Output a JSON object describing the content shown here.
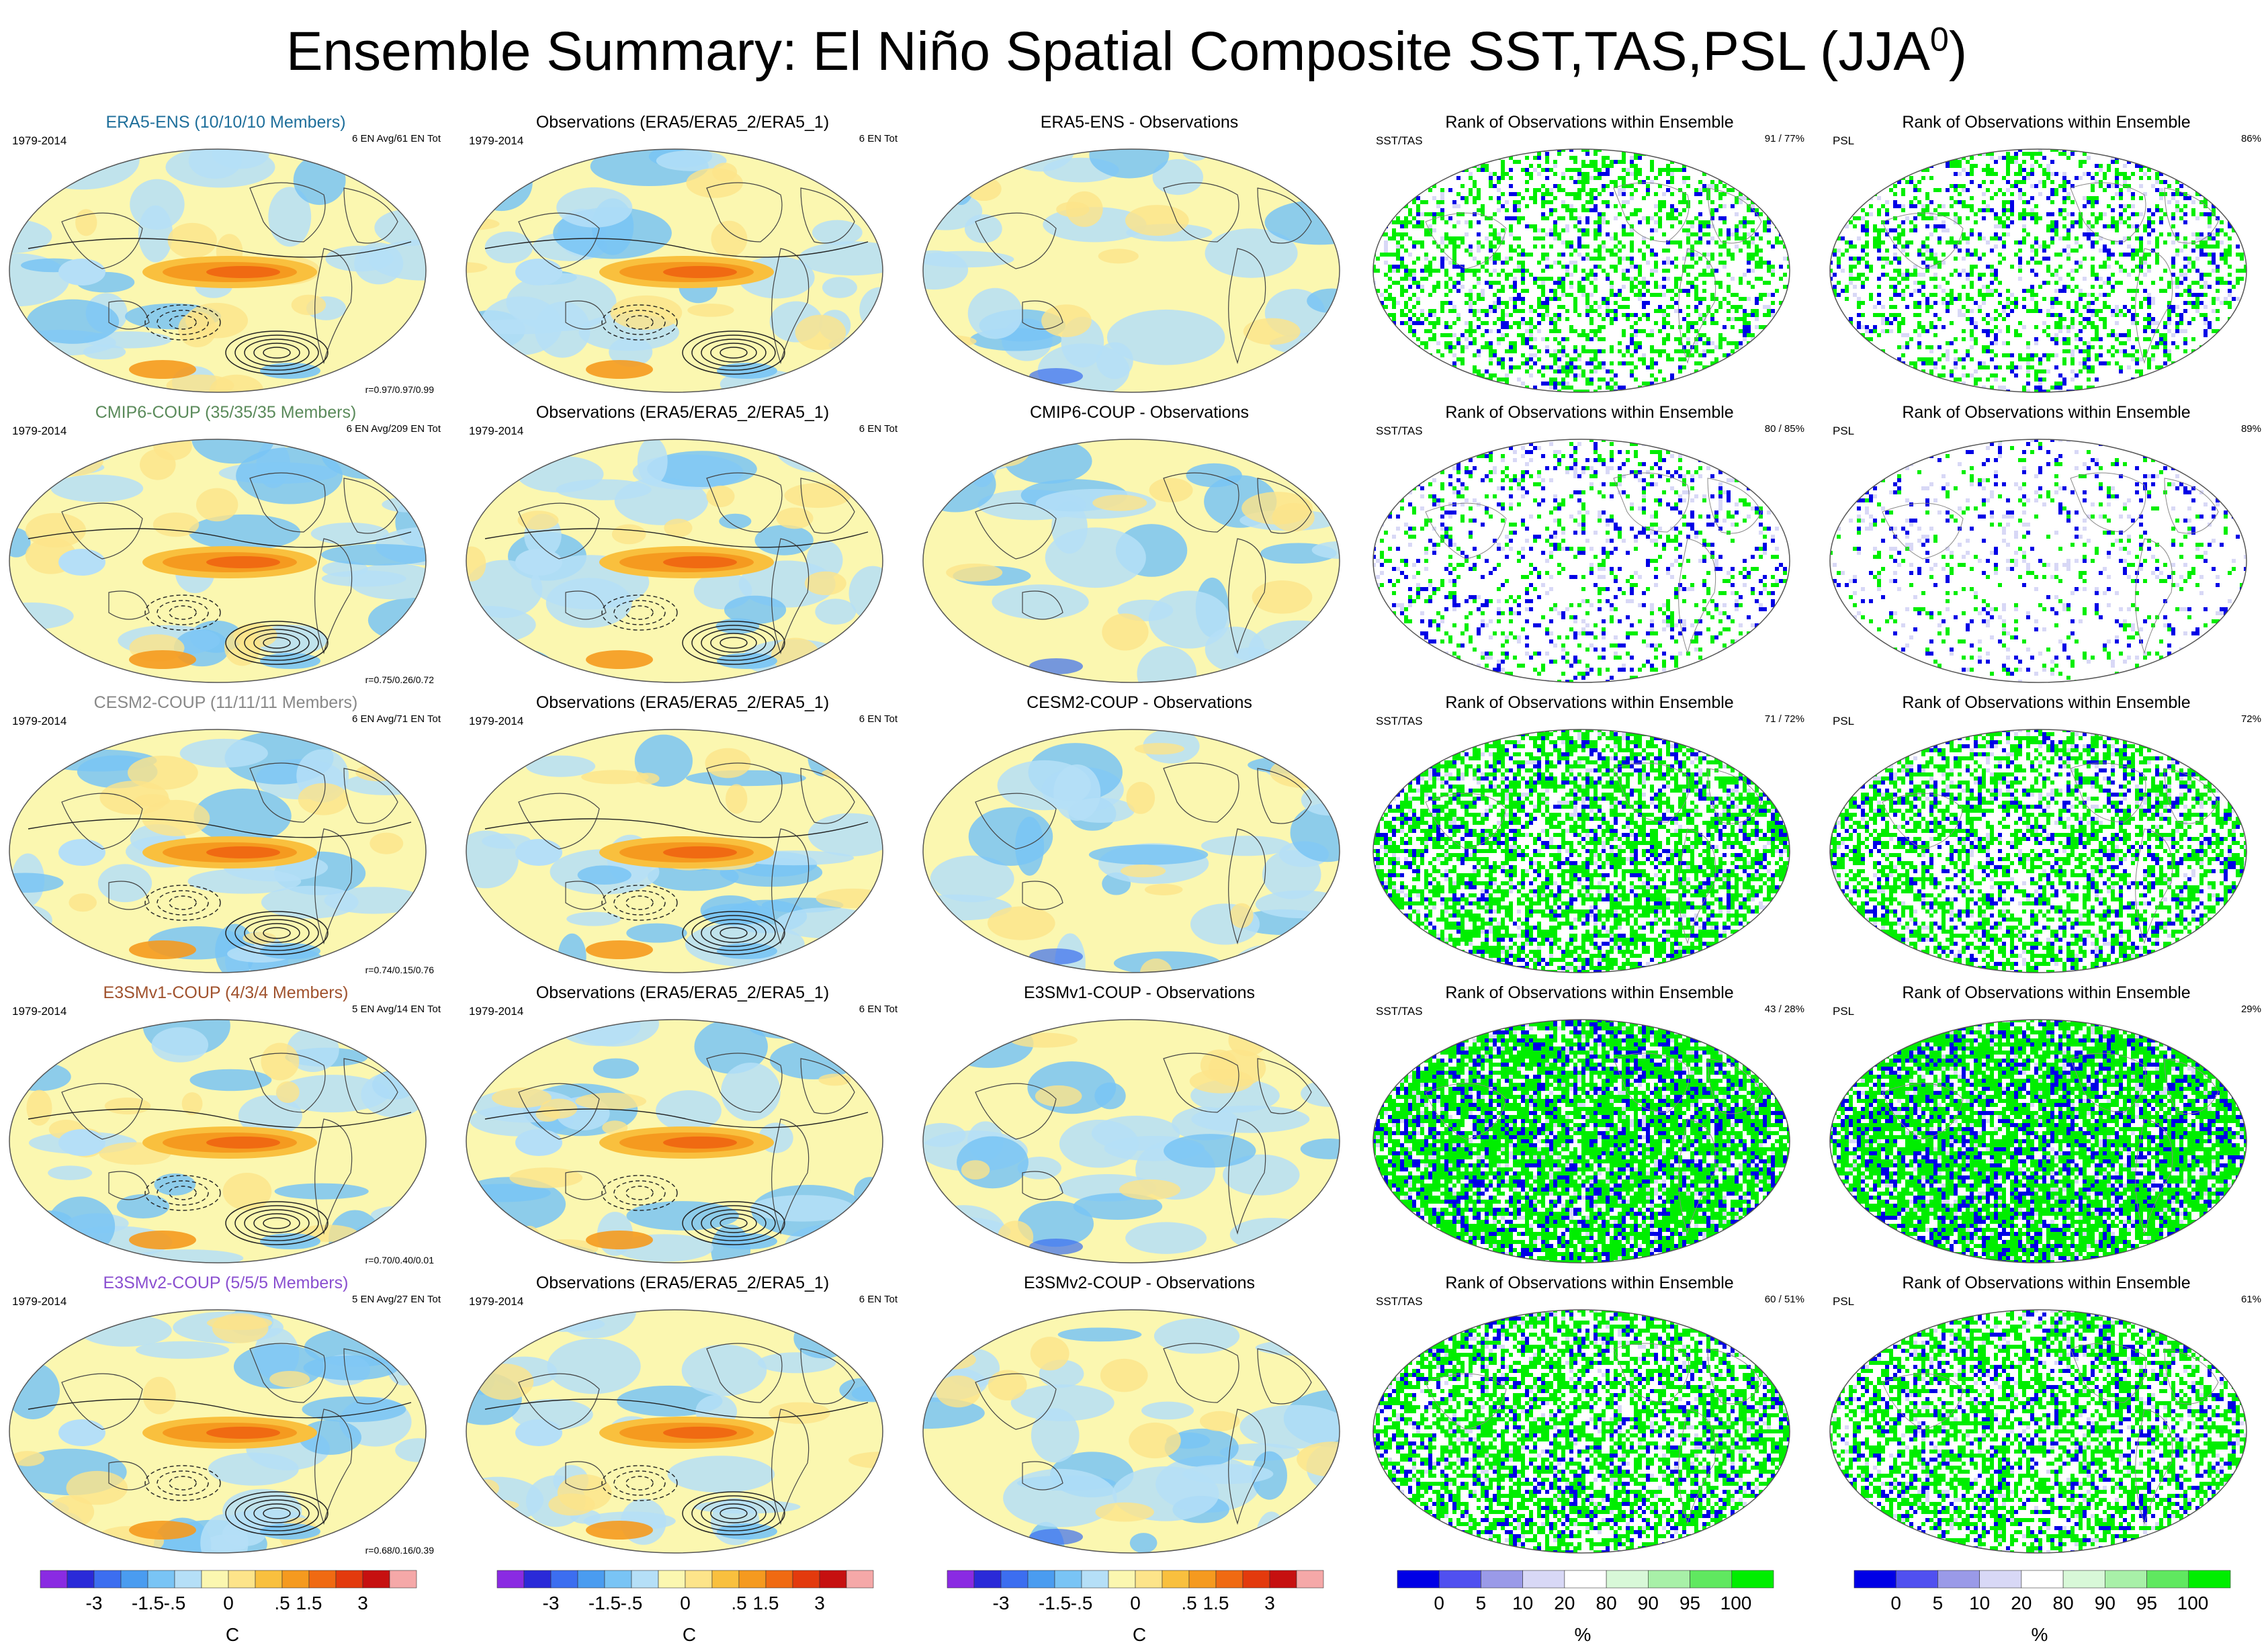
{
  "title": {
    "text": "Ensemble Summary: El Niño Spatial Composite SST,TAS,PSL (JJA",
    "superscript": "0",
    "close": ")"
  },
  "rows": [
    {
      "label": "ERA5-ENS (10/10/10 Members)",
      "label_color": "#1f6f9b",
      "ens_info": "6 EN Avg/61 EN Tot",
      "corr": "r=0.97/0.97/0.99",
      "diff_title": "ERA5-ENS - Observations",
      "rank_sst_pct": "91 /  77%",
      "rank_psl_pct": "86%",
      "green_frac_sst": 0.25,
      "blue_frac_sst": 0.06,
      "green_frac_psl": 0.2,
      "blue_frac_psl": 0.08
    },
    {
      "label": "CMIP6-COUP (35/35/35 Members)",
      "label_color": "#5a8a5a",
      "ens_info": "6 EN Avg/209 EN Tot",
      "corr": "r=0.75/0.26/0.72",
      "diff_title": "CMIP6-COUP - Observations",
      "rank_sst_pct": "80 /  85%",
      "rank_psl_pct": "89%",
      "green_frac_sst": 0.1,
      "blue_frac_sst": 0.08,
      "green_frac_psl": 0.06,
      "blue_frac_psl": 0.05
    },
    {
      "label": "CESM2-COUP (11/11/11 Members)",
      "label_color": "#888888",
      "ens_info": "6 EN Avg/71 EN Tot",
      "corr": "r=0.74/0.15/0.76",
      "diff_title": "CESM2-COUP - Observations",
      "rank_sst_pct": "71 /  72%",
      "rank_psl_pct": "72%",
      "green_frac_sst": 0.45,
      "blue_frac_sst": 0.12,
      "green_frac_psl": 0.35,
      "blue_frac_psl": 0.12
    },
    {
      "label": "E3SMv1-COUP (4/3/4 Members)",
      "label_color": "#a0522d",
      "ens_info": "5 EN Avg/14 EN Tot",
      "corr": "r=0.70/0.40/0.01",
      "diff_title": "E3SMv1-COUP - Observations",
      "rank_sst_pct": "43 /  28%",
      "rank_psl_pct": "29%",
      "green_frac_sst": 0.55,
      "blue_frac_sst": 0.2,
      "green_frac_psl": 0.55,
      "blue_frac_psl": 0.2
    },
    {
      "label": "E3SMv2-COUP (5/5/5 Members)",
      "label_color": "#8a4fd0",
      "ens_info": "5 EN Avg/27 EN Tot",
      "corr": "r=0.68/0.16/0.39",
      "diff_title": "E3SMv2-COUP - Observations",
      "rank_sst_pct": "60 /  51%",
      "rank_psl_pct": "61%",
      "green_frac_sst": 0.45,
      "blue_frac_sst": 0.12,
      "green_frac_psl": 0.4,
      "blue_frac_psl": 0.12
    }
  ],
  "common": {
    "period": "1979-2014",
    "obs_title": "Observations (ERA5/ERA5_2/ERA5_1)",
    "obs_info": "6 EN Tot",
    "rank_title": "Rank of Observations within Ensemble",
    "rank_sst_label": "SST/TAS",
    "rank_psl_label": "PSL"
  },
  "colorbar_temp": {
    "unit": "C",
    "tick_labels": [
      "-3",
      "-1.5",
      "-.5",
      "0",
      ".5",
      "1.5",
      "3"
    ],
    "colors": [
      "#8a2be2",
      "#2a2ad8",
      "#3c6ef0",
      "#4a9cf0",
      "#79c4f5",
      "#b5dff7",
      "#fbf7b0",
      "#fde48a",
      "#f9c03e",
      "#f59a1f",
      "#f06a12",
      "#e33a0d",
      "#c61010",
      "#f5a8a8"
    ]
  },
  "colorbar_rank": {
    "unit": "%",
    "tick_labels": [
      "0",
      "5",
      "10",
      "20",
      "80",
      "90",
      "95",
      "100"
    ],
    "colors": [
      "#0000e6",
      "#5050f0",
      "#9a9ae8",
      "#d8d8f6",
      "#ffffff",
      "#d8f8d8",
      "#a8f0a8",
      "#60e860",
      "#00ee00"
    ]
  },
  "chart_data": {
    "type": "heatmap",
    "description_fields": {
      "rows": [
        "ERA5-ENS",
        "CMIP6-COUP",
        "CESM2-COUP",
        "E3SMv1-COUP",
        "E3SMv2-COUP"
      ],
      "columns": [
        "Ensemble composite",
        "Observations",
        "Ensemble - Observations",
        "Rank SST/TAS",
        "Rank PSL"
      ]
    },
    "pattern_correlations": [
      {
        "model": "ERA5-ENS",
        "r": [
          0.97,
          0.97,
          0.99
        ]
      },
      {
        "model": "CMIP6-COUP",
        "r": [
          0.75,
          0.26,
          0.72
        ]
      },
      {
        "model": "CESM2-COUP",
        "r": [
          0.74,
          0.15,
          0.76
        ]
      },
      {
        "model": "E3SMv1-COUP",
        "r": [
          0.7,
          0.4,
          0.01
        ]
      },
      {
        "model": "E3SMv2-COUP",
        "r": [
          0.68,
          0.16,
          0.39
        ]
      }
    ],
    "rank_percent_sst_tas": [
      [
        91,
        77
      ],
      [
        80,
        85
      ],
      [
        71,
        72
      ],
      [
        43,
        28
      ],
      [
        60,
        51
      ]
    ],
    "rank_percent_psl": [
      86,
      89,
      72,
      29,
      61
    ],
    "temp_levels": [
      -3,
      -1.5,
      -0.5,
      0,
      0.5,
      1.5,
      3
    ],
    "rank_levels": [
      0,
      5,
      10,
      20,
      80,
      90,
      95,
      100
    ]
  }
}
